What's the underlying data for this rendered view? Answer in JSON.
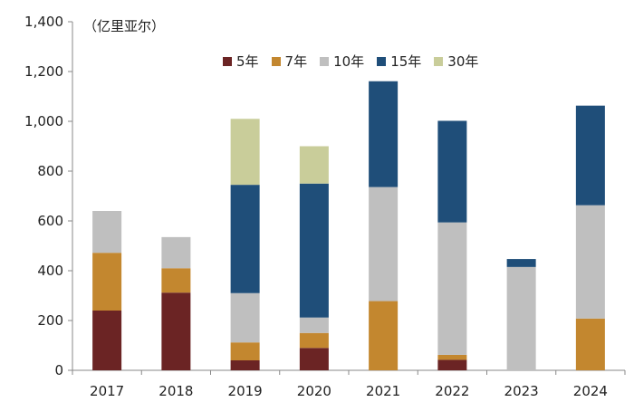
{
  "chart_data": {
    "type": "bar",
    "stacked": true,
    "unit": "（亿里亚尔）",
    "categories": [
      "2017",
      "2018",
      "2019",
      "2020",
      "2021",
      "2022",
      "2023",
      "2024"
    ],
    "series": [
      {
        "name": "5年",
        "color": "#6B2424",
        "values": [
          240,
          312,
          40,
          90,
          0,
          42,
          0,
          0
        ]
      },
      {
        "name": "7年",
        "color": "#C3872F",
        "values": [
          232,
          98,
          72,
          60,
          278,
          20,
          0,
          208
        ]
      },
      {
        "name": "10年",
        "color": "#BFBFBF",
        "values": [
          168,
          125,
          198,
          62,
          458,
          532,
          415,
          455
        ]
      },
      {
        "name": "15年",
        "color": "#1F4E79",
        "values": [
          0,
          0,
          435,
          538,
          425,
          408,
          32,
          400
        ]
      },
      {
        "name": "30年",
        "color": "#C9CD9A",
        "values": [
          0,
          0,
          265,
          150,
          0,
          0,
          0,
          0
        ]
      }
    ],
    "yticks": [
      "0",
      "200",
      "400",
      "600",
      "800",
      "1,000",
      "1,200",
      "1,400"
    ],
    "ylim": [
      0,
      1400
    ],
    "title": "",
    "xlabel": "",
    "ylabel": ""
  }
}
